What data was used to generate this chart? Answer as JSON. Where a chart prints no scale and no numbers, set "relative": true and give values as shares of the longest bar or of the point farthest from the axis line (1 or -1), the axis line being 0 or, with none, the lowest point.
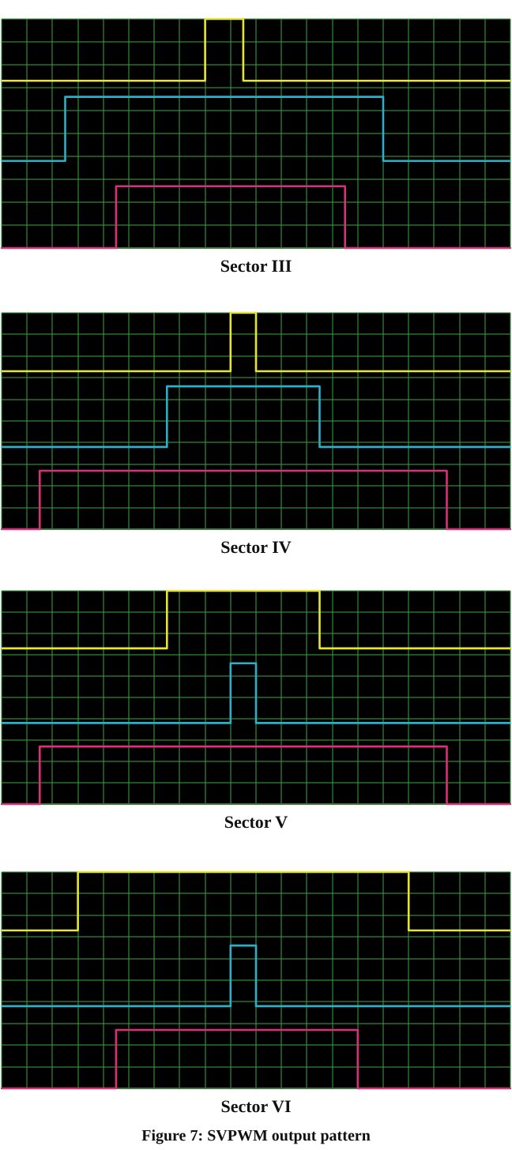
{
  "chart_data": [
    {
      "type": "step",
      "title": "Sector III",
      "relative": true,
      "grid": true,
      "tick_labels": false,
      "legend": false,
      "categories": [
        null,
        null,
        null,
        null,
        null,
        null,
        null,
        null,
        null,
        null,
        null,
        null,
        null,
        null,
        null,
        null,
        null,
        null,
        null,
        null,
        null,
        null,
        null,
        null,
        null,
        null,
        null,
        null,
        null,
        null,
        null,
        null,
        null,
        null,
        null,
        null,
        null,
        null,
        null,
        null,
        null
      ],
      "series": [
        {
          "color": "#e6e62e",
          "values": [
            0.73,
            0.73,
            0.73,
            0.73,
            0.73,
            0.73,
            0.73,
            0.73,
            0.73,
            0.73,
            0.73,
            0.73,
            0.73,
            0.73,
            0.73,
            0.73,
            0.73,
            1,
            1,
            1,
            0.73,
            0.73,
            0.73,
            0.73,
            0.73,
            0.73,
            0.73,
            0.73,
            0.73,
            0.73,
            0.73,
            0.73,
            0.73,
            0.73,
            0.73,
            0.73,
            0.73,
            0.73,
            0.73,
            0.73,
            0.73
          ]
        },
        {
          "color": "#2ab0c8",
          "values": [
            0.38,
            0.38,
            0.38,
            0.38,
            0.38,
            0.38,
            0.66,
            0.66,
            0.66,
            0.66,
            0.66,
            0.66,
            0.66,
            0.66,
            0.66,
            0.66,
            0.66,
            0.66,
            0.66,
            0.66,
            0.66,
            0.66,
            0.66,
            0.66,
            0.66,
            0.66,
            0.66,
            0.66,
            0.66,
            0.66,
            0.66,
            0.38,
            0.38,
            0.38,
            0.38,
            0.38,
            0.38,
            0.38,
            0.38,
            0.38,
            0.38
          ]
        },
        {
          "color": "#d8307a",
          "values": [
            0,
            0,
            0,
            0,
            0,
            0,
            0,
            0,
            0,
            0,
            0.27,
            0.27,
            0.27,
            0.27,
            0.27,
            0.27,
            0.27,
            0.27,
            0.27,
            0.27,
            0.27,
            0.27,
            0.27,
            0.27,
            0.27,
            0.27,
            0.27,
            0.27,
            0,
            0,
            0,
            0,
            0,
            0,
            0,
            0,
            0,
            0,
            0,
            0,
            0
          ]
        }
      ]
    },
    {
      "type": "step",
      "title": "Sector IV",
      "relative": true,
      "grid": true,
      "tick_labels": false,
      "legend": false,
      "categories": [
        null,
        null,
        null,
        null,
        null,
        null,
        null,
        null,
        null,
        null,
        null,
        null,
        null,
        null,
        null,
        null,
        null,
        null,
        null,
        null,
        null,
        null,
        null,
        null,
        null,
        null,
        null,
        null,
        null,
        null,
        null,
        null,
        null,
        null,
        null,
        null,
        null,
        null,
        null,
        null,
        null
      ],
      "series": [
        {
          "color": "#e6e62e",
          "values": [
            0.73,
            0.73,
            0.73,
            0.73,
            0.73,
            0.73,
            0.73,
            0.73,
            0.73,
            0.73,
            0.73,
            0.73,
            0.73,
            0.73,
            0.73,
            0.73,
            0.73,
            0.73,
            0.73,
            1,
            1,
            0.73,
            0.73,
            0.73,
            0.73,
            0.73,
            0.73,
            0.73,
            0.73,
            0.73,
            0.73,
            0.73,
            0.73,
            0.73,
            0.73,
            0.73,
            0.73,
            0.73,
            0.73,
            0.73,
            0.73
          ]
        },
        {
          "color": "#2ab0c8",
          "values": [
            0.38,
            0.38,
            0.38,
            0.38,
            0.38,
            0.38,
            0.38,
            0.38,
            0.38,
            0.38,
            0.38,
            0.38,
            0.38,
            0.38,
            0.66,
            0.66,
            0.66,
            0.66,
            0.66,
            0.66,
            0.66,
            0.66,
            0.66,
            0.66,
            0.66,
            0.66,
            0.38,
            0.38,
            0.38,
            0.38,
            0.38,
            0.38,
            0.38,
            0.38,
            0.38,
            0.38,
            0.38,
            0.38,
            0.38,
            0.38,
            0.38
          ]
        },
        {
          "color": "#d8307a",
          "values": [
            0,
            0,
            0,
            0,
            0.27,
            0.27,
            0.27,
            0.27,
            0.27,
            0.27,
            0.27,
            0.27,
            0.27,
            0.27,
            0.27,
            0.27,
            0.27,
            0.27,
            0.27,
            0.27,
            0.27,
            0.27,
            0.27,
            0.27,
            0.27,
            0.27,
            0.27,
            0.27,
            0.27,
            0.27,
            0.27,
            0.27,
            0.27,
            0.27,
            0.27,
            0.27,
            0,
            0,
            0,
            0,
            0
          ]
        }
      ]
    },
    {
      "type": "step",
      "title": "Sector V",
      "relative": true,
      "grid": true,
      "tick_labels": false,
      "legend": false,
      "categories": [
        null,
        null,
        null,
        null,
        null,
        null,
        null,
        null,
        null,
        null,
        null,
        null,
        null,
        null,
        null,
        null,
        null,
        null,
        null,
        null,
        null,
        null,
        null,
        null,
        null,
        null,
        null,
        null,
        null,
        null,
        null,
        null,
        null,
        null,
        null,
        null,
        null,
        null,
        null,
        null,
        null
      ],
      "series": [
        {
          "color": "#e6e62e",
          "values": [
            0.73,
            0.73,
            0.73,
            0.73,
            0.73,
            0.73,
            0.73,
            0.73,
            0.73,
            0.73,
            0.73,
            0.73,
            0.73,
            0.73,
            1,
            1,
            1,
            1,
            1,
            1,
            1,
            1,
            1,
            1,
            1,
            1,
            0.73,
            0.73,
            0.73,
            0.73,
            0.73,
            0.73,
            0.73,
            0.73,
            0.73,
            0.73,
            0.73,
            0.73,
            0.73,
            0.73,
            0.73
          ]
        },
        {
          "color": "#2ab0c8",
          "values": [
            0.38,
            0.38,
            0.38,
            0.38,
            0.38,
            0.38,
            0.38,
            0.38,
            0.38,
            0.38,
            0.38,
            0.38,
            0.38,
            0.38,
            0.38,
            0.38,
            0.38,
            0.38,
            0.38,
            0.66,
            0.66,
            0.38,
            0.38,
            0.38,
            0.38,
            0.38,
            0.38,
            0.38,
            0.38,
            0.38,
            0.38,
            0.38,
            0.38,
            0.38,
            0.38,
            0.38,
            0.38,
            0.38,
            0.38,
            0.38,
            0.38
          ]
        },
        {
          "color": "#d8307a",
          "values": [
            0,
            0,
            0,
            0,
            0.27,
            0.27,
            0.27,
            0.27,
            0.27,
            0.27,
            0.27,
            0.27,
            0.27,
            0.27,
            0.27,
            0.27,
            0.27,
            0.27,
            0.27,
            0.27,
            0.27,
            0.27,
            0.27,
            0.27,
            0.27,
            0.27,
            0.27,
            0.27,
            0.27,
            0.27,
            0.27,
            0.27,
            0.27,
            0.27,
            0.27,
            0.27,
            0,
            0,
            0,
            0,
            0
          ]
        }
      ]
    },
    {
      "type": "step",
      "title": "Sector VI",
      "relative": true,
      "grid": true,
      "tick_labels": false,
      "legend": false,
      "annotations": [
        "Figure 7: SVPWM output pattern"
      ],
      "categories": [
        null,
        null,
        null,
        null,
        null,
        null,
        null,
        null,
        null,
        null,
        null,
        null,
        null,
        null,
        null,
        null,
        null,
        null,
        null,
        null,
        null,
        null,
        null,
        null,
        null,
        null,
        null,
        null,
        null,
        null,
        null,
        null,
        null,
        null,
        null,
        null,
        null,
        null,
        null,
        null,
        null
      ],
      "series": [
        {
          "color": "#e6e62e",
          "values": [
            0.73,
            0.73,
            0.73,
            0.73,
            0.73,
            0.73,
            0.73,
            1,
            1,
            1,
            1,
            1,
            1,
            1,
            1,
            1,
            1,
            1,
            1,
            1,
            1,
            1,
            1,
            1,
            1,
            1,
            1,
            1,
            1,
            1,
            1,
            1,
            1,
            0.73,
            0.73,
            0.73,
            0.73,
            0.73,
            0.73,
            0.73,
            0.73
          ]
        },
        {
          "color": "#2ab0c8",
          "values": [
            0.38,
            0.38,
            0.38,
            0.38,
            0.38,
            0.38,
            0.38,
            0.38,
            0.38,
            0.38,
            0.38,
            0.38,
            0.38,
            0.38,
            0.38,
            0.38,
            0.38,
            0.38,
            0.38,
            0.66,
            0.66,
            0.38,
            0.38,
            0.38,
            0.38,
            0.38,
            0.38,
            0.38,
            0.38,
            0.38,
            0.38,
            0.38,
            0.38,
            0.38,
            0.38,
            0.38,
            0.38,
            0.38,
            0.38,
            0.38,
            0.38
          ]
        },
        {
          "color": "#d8307a",
          "values": [
            0,
            0,
            0,
            0,
            0,
            0,
            0,
            0,
            0,
            0,
            0.27,
            0.27,
            0.27,
            0.27,
            0.27,
            0.27,
            0.27,
            0.27,
            0.27,
            0.27,
            0.27,
            0.27,
            0.27,
            0.27,
            0.27,
            0.27,
            0.27,
            0.27,
            0.27,
            0,
            0,
            0,
            0,
            0,
            0,
            0,
            0,
            0,
            0,
            0,
            0
          ]
        }
      ]
    }
  ]
}
